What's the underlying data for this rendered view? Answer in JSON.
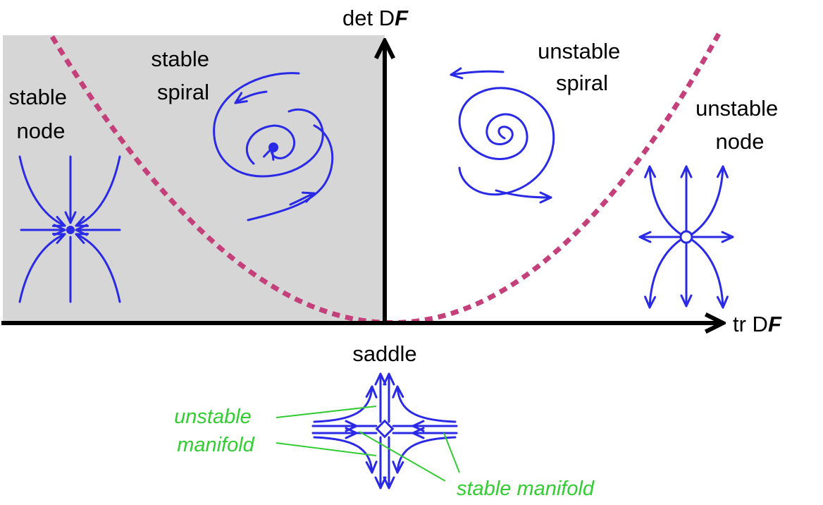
{
  "axes": {
    "y_label_main": "det D",
    "y_label_italic": "F",
    "x_label_main": "tr D",
    "x_label_italic": "F"
  },
  "regions": {
    "stable_node": [
      "stable",
      "node"
    ],
    "stable_spiral": [
      "stable",
      "spiral"
    ],
    "unstable_spiral": [
      "unstable",
      "spiral"
    ],
    "unstable_node": [
      "unstable",
      "node"
    ],
    "saddle": "saddle"
  },
  "manifolds": {
    "unstable": [
      "unstable",
      "manifold"
    ],
    "stable": "stable manifold"
  },
  "colors": {
    "stable_region_fill": "#d6d6d6",
    "trajectory": "#2a2ae6",
    "boundary_parabola": "#c4407a",
    "manifold_annotation": "#33cc33",
    "axis": "#000000"
  }
}
